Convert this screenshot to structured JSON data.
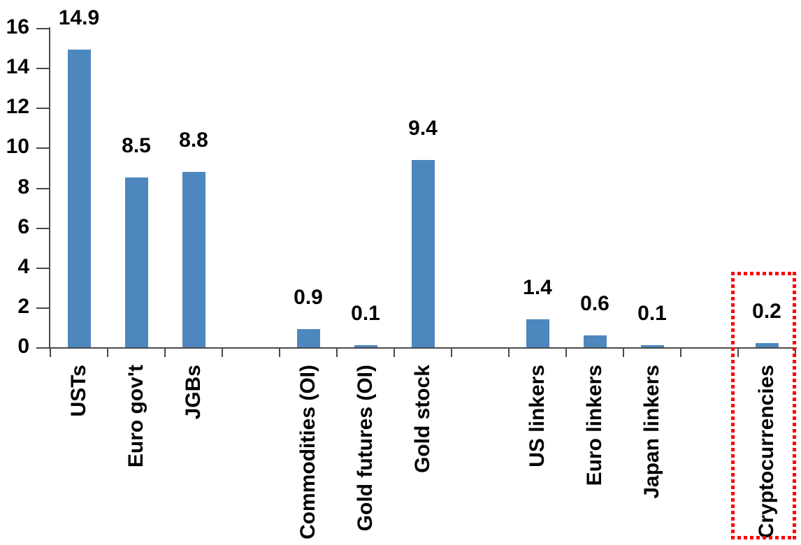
{
  "chart_data": {
    "type": "bar",
    "title": "",
    "xlabel": "",
    "ylabel": "",
    "categories": [
      "USTs",
      "Euro gov't",
      "JGBs",
      "",
      "Commodities (OI)",
      "Gold futures (OI)",
      "Gold stock",
      "",
      "US linkers",
      "Euro linkers",
      "Japan linkers",
      "",
      "Cryptocurrencies"
    ],
    "values": [
      14.9,
      8.5,
      8.8,
      null,
      0.9,
      0.1,
      9.4,
      null,
      1.4,
      0.6,
      0.1,
      null,
      0.2
    ],
    "data_labels": [
      "14.9",
      "8.5",
      "8.8",
      null,
      "0.9",
      "0.1",
      "9.4",
      null,
      "1.4",
      "0.6",
      "0.1",
      null,
      "0.2"
    ],
    "ylim": [
      0,
      16
    ],
    "yticks": [
      0,
      2,
      4,
      6,
      8,
      10,
      12,
      14,
      16
    ],
    "grid": false,
    "legend": "none",
    "bar_color": "#4E87BD",
    "axis_color": "#4A4A4A",
    "text_color": "#000000",
    "highlight": {
      "category": "Cryptocurrencies",
      "box_color": "#FF0000",
      "box_style": "dotted"
    }
  }
}
